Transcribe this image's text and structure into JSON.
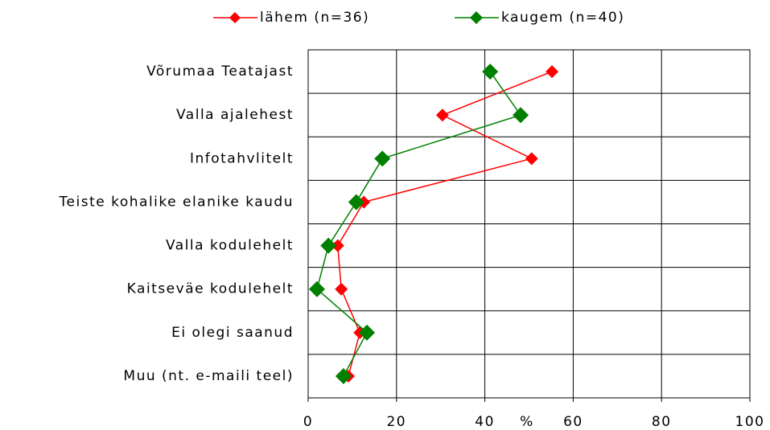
{
  "chart_data": {
    "type": "line",
    "categories": [
      "Võrumaa Teatajast",
      "Valla ajalehest",
      "Infotahvlitelt",
      "Teiste kohalike elanike kaudu",
      "Valla kodulehelt",
      "Kaitseväe kodulehelt",
      "Ei olegi saanud",
      "Muu (nt. e-maili teel)"
    ],
    "series": [
      {
        "name": "lähem (n=36)",
        "color": "#ff0000",
        "values": [
          55.2,
          30.4,
          50.6,
          12.6,
          6.7,
          7.5,
          11.7,
          9.1
        ]
      },
      {
        "name": "kaugem (n=40)",
        "color": "#008000",
        "values": [
          41.2,
          48.1,
          16.8,
          10.9,
          4.6,
          2.0,
          13.3,
          8.0
        ]
      }
    ],
    "xlabel": "%",
    "xlim": [
      0,
      100
    ],
    "xticks": [
      0,
      20,
      40,
      60,
      80,
      100
    ],
    "grid": true,
    "legend": "top"
  }
}
